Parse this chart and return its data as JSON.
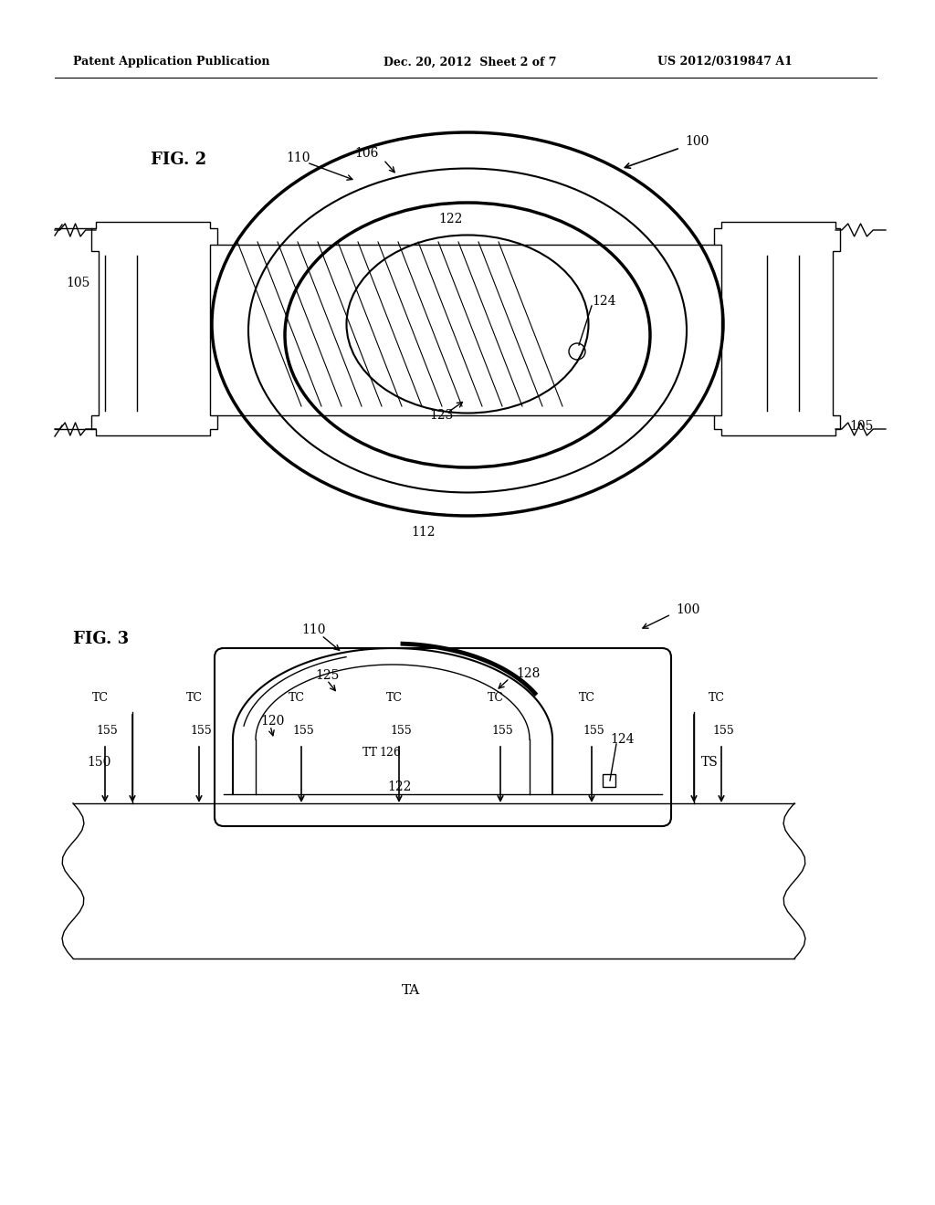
{
  "bg_color": "#ffffff",
  "header_left": "Patent Application Publication",
  "header_mid": "Dec. 20, 2012  Sheet 2 of 7",
  "header_right": "US 2012/0319847 A1",
  "fig2_label": "FIG. 2",
  "fig3_label": "FIG. 3",
  "label_100a": "100",
  "label_100b": "100",
  "label_105a": "105",
  "label_105b": "105",
  "label_106": "106",
  "label_110a": "110",
  "label_110b": "110",
  "label_112": "112",
  "label_120": "120",
  "label_122a": "122",
  "label_122b": "122",
  "label_123": "123",
  "label_124a": "124",
  "label_124b": "124",
  "label_125": "125",
  "label_126": "126",
  "label_128": "128",
  "label_150": "150",
  "label_155": "155",
  "label_TT": "TT",
  "label_TS": "TS",
  "label_TC": "TC",
  "label_TA": "TA"
}
